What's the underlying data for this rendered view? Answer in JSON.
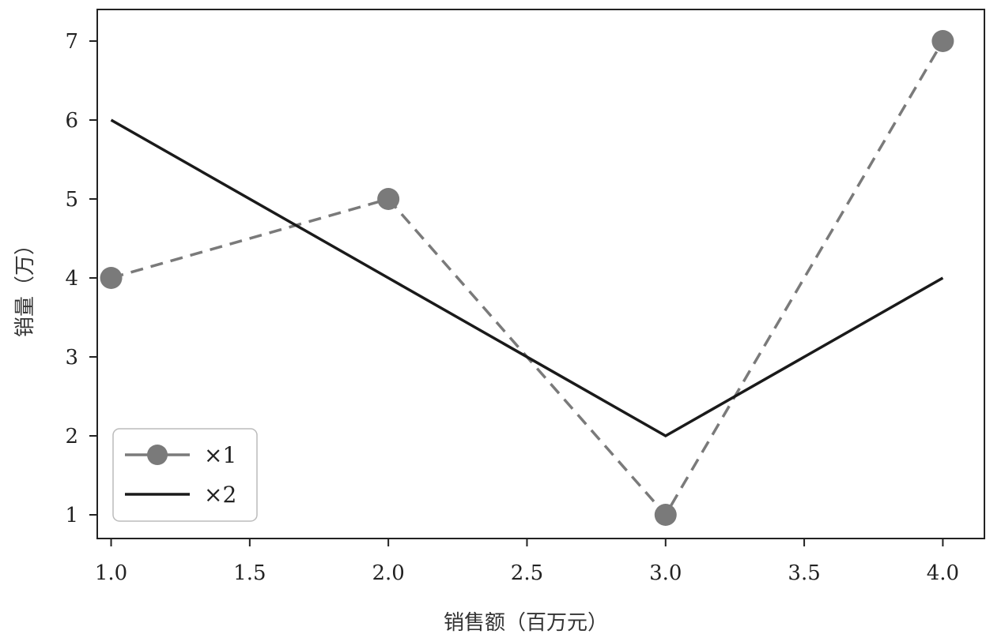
{
  "chart_data": {
    "type": "line",
    "xlabel": "销售额（百万元）",
    "ylabel": "销量（万）",
    "xlim": [
      0.95,
      4.15
    ],
    "ylim": [
      0.7,
      7.4
    ],
    "xticks": [
      "1.0",
      "1.5",
      "2.0",
      "2.5",
      "3.0",
      "3.5",
      "4.0"
    ],
    "yticks": [
      "1",
      "2",
      "3",
      "4",
      "5",
      "6",
      "7"
    ],
    "grid": false,
    "legend_position": "lower-left",
    "series": [
      {
        "name": "×1",
        "x": [
          1.0,
          2.0,
          3.0,
          4.0
        ],
        "y": [
          4,
          5,
          1,
          7
        ],
        "style": "dashed",
        "marker": "circle",
        "color": "#7a7a7a"
      },
      {
        "name": "×2",
        "x": [
          1.0,
          2.0,
          3.0,
          4.0
        ],
        "y": [
          6,
          4,
          2,
          4
        ],
        "style": "solid",
        "marker": "none",
        "color": "#1a1a1a"
      }
    ]
  }
}
